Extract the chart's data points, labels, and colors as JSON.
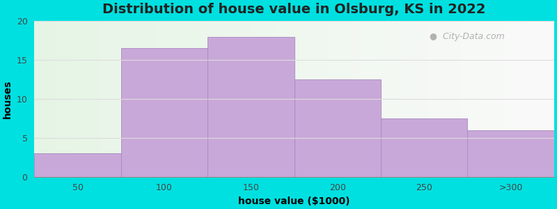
{
  "categories": [
    "50",
    "100",
    "150",
    "200",
    "250",
    ">300"
  ],
  "values": [
    3,
    16.5,
    18,
    12.5,
    7.5,
    6
  ],
  "bar_color": "#c8a8d8",
  "bar_edgecolor": "#a888c0",
  "title": "Distribution of house value in Olsburg, KS in 2022",
  "xlabel": "house value ($1000)",
  "ylabel": "houses",
  "ylim": [
    0,
    20
  ],
  "yticks": [
    0,
    5,
    10,
    15,
    20
  ],
  "background_outer": "#00e0e0",
  "grid_color": "#dddddd",
  "title_fontsize": 14,
  "axis_label_fontsize": 10,
  "tick_fontsize": 9,
  "watermark_text": "City-Data.com",
  "watermark_color": "#aaaaaa"
}
